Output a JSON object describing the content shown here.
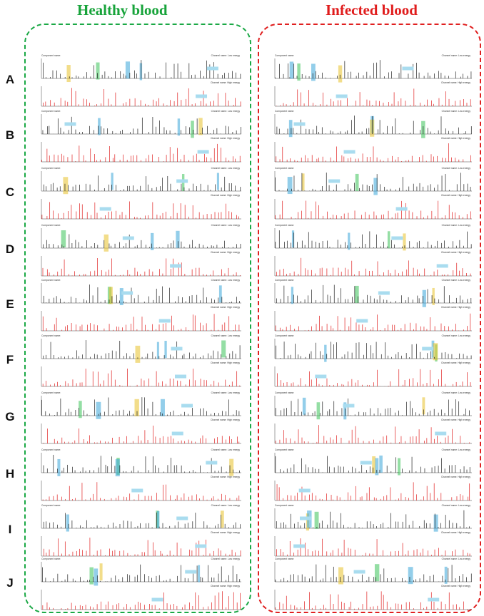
{
  "titles": {
    "healthy": "Healthy blood",
    "infected": "Infected blood"
  },
  "row_labels": [
    "A",
    "B",
    "C",
    "D",
    "E",
    "F",
    "G",
    "H",
    "I",
    "J"
  ],
  "colors": {
    "healthy_frame": "#1aa845",
    "infected_frame": "#e02020",
    "low_energy_peak": "#222222",
    "high_energy_peak": "#e02020",
    "highlight_blue": "#3aa6d8",
    "highlight_green": "#3cc25a",
    "highlight_yellow": "#e8c12a",
    "label_box": "#a9dcef"
  },
  "panel_caption_left": "Component name:",
  "panel_caption_low": "Channel name: Low energy",
  "panel_caption_high": "Channel name: High energy"
}
